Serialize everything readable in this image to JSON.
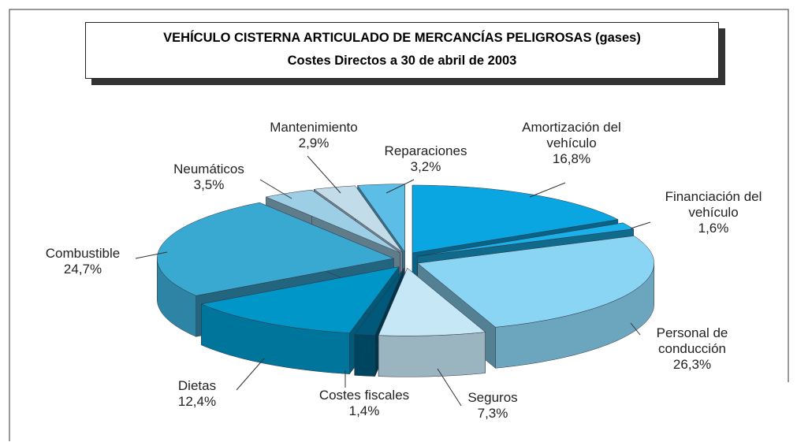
{
  "chart_data": {
    "type": "pie",
    "title": "VEHÍCULO CISTERNA ARTICULADO DE MERCANCÍAS PELIGROSAS (gases)",
    "subtitle": "Costes Directos a 30 de abril de 2003",
    "categories": [
      "Amortización del vehículo",
      "Financiación del vehículo",
      "Personal de conducción",
      "Seguros",
      "Costes fiscales",
      "Dietas",
      "Combustible",
      "Neumáticos",
      "Mantenimiento",
      "Reparaciones"
    ],
    "values": [
      16.8,
      1.6,
      26.3,
      7.3,
      1.4,
      12.4,
      24.7,
      3.5,
      2.9,
      3.2
    ],
    "value_labels": [
      "16,8%",
      "1,6%",
      "26,3%",
      "7,3%",
      "1,4%",
      "12,4%",
      "24,7%",
      "3,5%",
      "2,9%",
      "3,2%"
    ],
    "colors": [
      "#0aa6e2",
      "#1ab0ea",
      "#8ad5f4",
      "#c6e7f6",
      "#00587a",
      "#0096c8",
      "#3aa9d2",
      "#9ccfe6",
      "#c2dcea",
      "#5cbee7"
    ]
  }
}
